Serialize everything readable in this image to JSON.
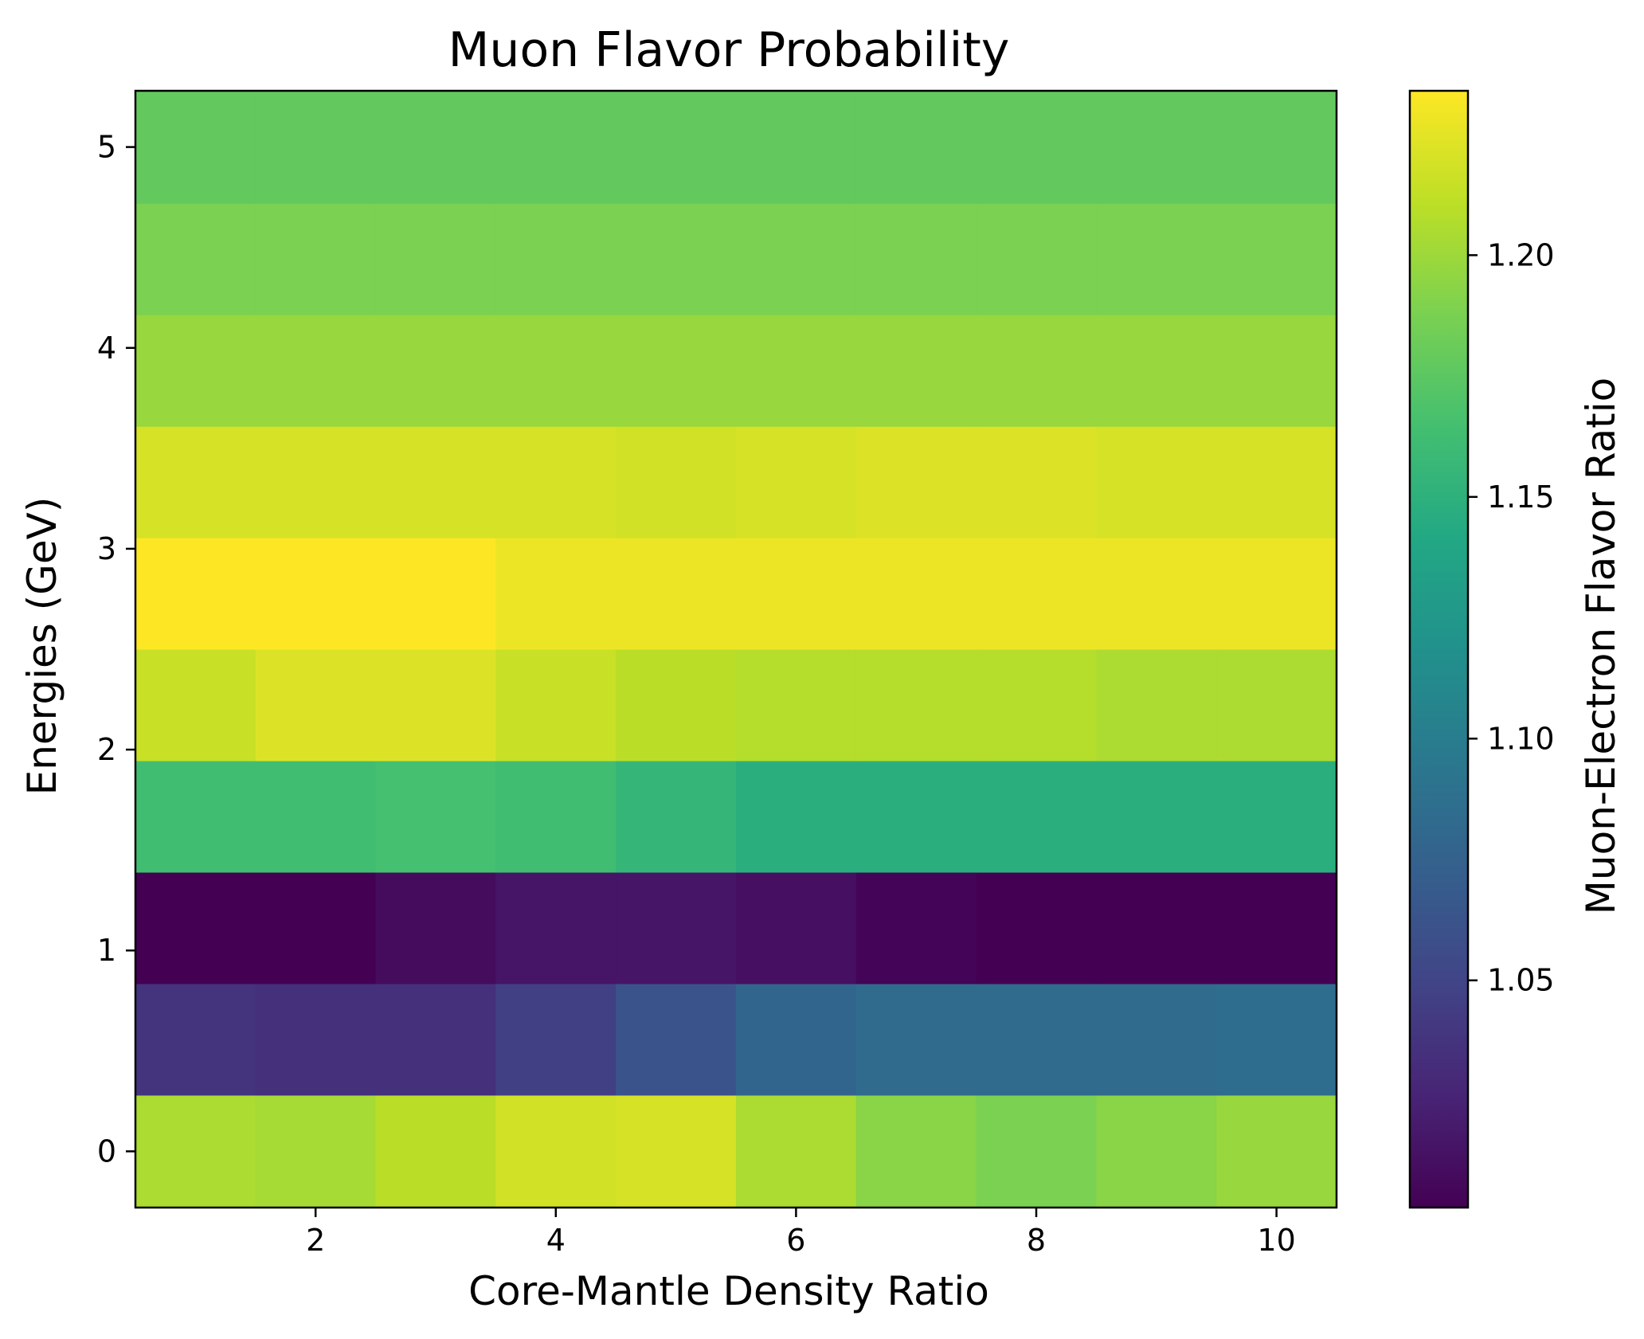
{
  "chart_data": {
    "type": "heatmap",
    "title": "Muon Flavor Probability",
    "xlabel": "Core-Mantle Density Ratio",
    "ylabel": "Energies (GeV)",
    "colorbar_label": "Muon-Electron Flavor Ratio",
    "colormap": "viridis",
    "x": [
      1,
      2,
      3,
      4,
      5,
      6,
      7,
      8,
      9,
      10
    ],
    "y": [
      0,
      0.56,
      1.11,
      1.67,
      2.22,
      2.78,
      3.33,
      3.89,
      4.44,
      5.0
    ],
    "xlim": [
      0.5,
      10.5
    ],
    "ylim": [
      -0.28,
      5.28
    ],
    "xticks": [
      2,
      4,
      6,
      8,
      10
    ],
    "xtick_labels": [
      "2",
      "4",
      "6",
      "8",
      "10"
    ],
    "yticks": [
      0,
      1,
      2,
      3,
      4,
      5
    ],
    "ytick_labels": [
      "0",
      "1",
      "2",
      "3",
      "4",
      "5"
    ],
    "vmin": 1.003,
    "vmax": 1.234,
    "colorbar_ticks": [
      1.05,
      1.1,
      1.15,
      1.2
    ],
    "colorbar_tick_labels": [
      "1.05",
      "1.10",
      "1.15",
      "1.20"
    ],
    "values": [
      [
        1.205,
        1.203,
        1.21,
        1.218,
        1.22,
        1.205,
        1.193,
        1.188,
        1.193,
        1.198
      ],
      [
        1.038,
        1.035,
        1.035,
        1.046,
        1.063,
        1.078,
        1.083,
        1.083,
        1.083,
        1.085
      ],
      [
        1.003,
        1.003,
        1.01,
        1.016,
        1.016,
        1.012,
        1.005,
        1.003,
        1.003,
        1.003
      ],
      [
        1.163,
        1.163,
        1.165,
        1.163,
        1.155,
        1.148,
        1.148,
        1.148,
        1.148,
        1.148
      ],
      [
        1.215,
        1.222,
        1.222,
        1.215,
        1.21,
        1.208,
        1.208,
        1.208,
        1.205,
        1.205
      ],
      [
        1.234,
        1.234,
        1.234,
        1.228,
        1.228,
        1.228,
        1.228,
        1.228,
        1.228,
        1.228
      ],
      [
        1.22,
        1.22,
        1.22,
        1.22,
        1.218,
        1.22,
        1.222,
        1.222,
        1.22,
        1.22
      ],
      [
        1.198,
        1.198,
        1.198,
        1.198,
        1.198,
        1.198,
        1.198,
        1.198,
        1.198,
        1.198
      ],
      [
        1.188,
        1.188,
        1.188,
        1.188,
        1.188,
        1.188,
        1.188,
        1.188,
        1.188,
        1.188
      ],
      [
        1.178,
        1.178,
        1.178,
        1.178,
        1.178,
        1.178,
        1.178,
        1.178,
        1.178,
        1.178
      ]
    ]
  }
}
